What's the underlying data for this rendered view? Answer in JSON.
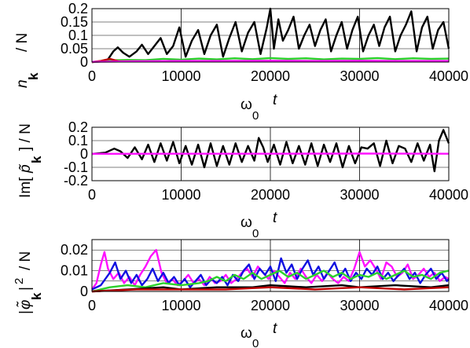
{
  "colors": {
    "black": "#000000",
    "red": "#c00000",
    "green": "#2bd12b",
    "blue": "#1010e0",
    "magenta": "#ff10ff",
    "grid": "#000000"
  },
  "chart_data": [
    {
      "type": "line",
      "xlim": [
        0,
        40000
      ],
      "ylim": [
        0,
        0.2
      ],
      "grid": true,
      "xticks": [
        0,
        10000,
        20000,
        30000,
        40000
      ],
      "xtick_labels": [
        "0",
        "10000",
        "20000",
        "30000",
        "40000"
      ],
      "yticks": [
        0,
        0.05,
        0.1,
        0.15,
        0.2
      ],
      "ytick_labels": [
        "0",
        "0.05",
        "0.1",
        "0.15",
        "0.2"
      ],
      "xlabel": {
        "base": "ω",
        "sub": "0",
        "var": "t"
      },
      "ylabel": {
        "base": "n",
        "sub": "k",
        "rest": "/ N"
      },
      "series": [
        {
          "color_key": "black",
          "x": [
            0,
            1000,
            1800,
            2400,
            2900,
            3500,
            4200,
            5000,
            5600,
            6300,
            7000,
            7700,
            8400,
            9100,
            9800,
            10500,
            11200,
            11900,
            12600,
            13300,
            14000,
            14700,
            15400,
            16100,
            16800,
            17500,
            18200,
            18900,
            19600,
            20000,
            20400,
            20900,
            21400,
            22000,
            22600,
            23200,
            23800,
            24400,
            25000,
            25600,
            26200,
            26800,
            27400,
            28000,
            28600,
            29200,
            29800,
            30400,
            31000,
            31600,
            32200,
            32800,
            33400,
            34000,
            34600,
            35200,
            35800,
            36400,
            37000,
            37600,
            38200,
            38800,
            39400,
            40000
          ],
          "y": [
            0,
            0.002,
            0.01,
            0.04,
            0.055,
            0.035,
            0.02,
            0.04,
            0.065,
            0.03,
            0.06,
            0.09,
            0.03,
            0.06,
            0.13,
            0.02,
            0.08,
            0.12,
            0.03,
            0.1,
            0.14,
            0.02,
            0.09,
            0.15,
            0.04,
            0.11,
            0.15,
            0.03,
            0.13,
            0.2,
            0.05,
            0.16,
            0.08,
            0.12,
            0.17,
            0.05,
            0.1,
            0.14,
            0.06,
            0.12,
            0.16,
            0.04,
            0.1,
            0.15,
            0.05,
            0.12,
            0.17,
            0.04,
            0.1,
            0.14,
            0.06,
            0.13,
            0.17,
            0.04,
            0.1,
            0.14,
            0.19,
            0.04,
            0.13,
            0.17,
            0.05,
            0.12,
            0.15,
            0.05
          ]
        },
        {
          "color_key": "green",
          "x": [
            0,
            2000,
            4000,
            6000,
            8000,
            10000,
            12000,
            14000,
            16000,
            18000,
            20000,
            22000,
            24000,
            26000,
            28000,
            30000,
            32000,
            34000,
            36000,
            38000,
            40000
          ],
          "y": [
            0,
            0.006,
            0.008,
            0.007,
            0.012,
            0.009,
            0.013,
            0.01,
            0.014,
            0.011,
            0.015,
            0.012,
            0.014,
            0.01,
            0.013,
            0.012,
            0.015,
            0.011,
            0.014,
            0.012,
            0.013
          ]
        },
        {
          "color_key": "red",
          "x": [
            0,
            1000,
            2000,
            3000,
            10000,
            20000,
            30000,
            40000
          ],
          "y": [
            0,
            0.004,
            0.012,
            0.003,
            0.002,
            0.002,
            0.002,
            0.002
          ]
        },
        {
          "color_key": "magenta",
          "x": [
            0,
            5000,
            10000,
            15000,
            20000,
            25000,
            30000,
            35000,
            40000
          ],
          "y": [
            0.001,
            0.003,
            0.004,
            0.004,
            0.005,
            0.004,
            0.005,
            0.004,
            0.004
          ]
        }
      ]
    },
    {
      "type": "line",
      "xlim": [
        0,
        40000
      ],
      "ylim": [
        -0.2,
        0.2
      ],
      "grid": true,
      "xticks": [
        0,
        10000,
        20000,
        30000,
        40000
      ],
      "xtick_labels": [
        "0",
        "10000",
        "20000",
        "30000",
        "40000"
      ],
      "yticks": [
        -0.2,
        -0.1,
        0,
        0.1,
        0.2
      ],
      "ytick_labels": [
        "-0.2",
        "-0.1",
        "0",
        "0.1",
        "0.2"
      ],
      "xlabel": {
        "base": "ω",
        "sub": "0",
        "var": "t"
      },
      "ylabel": {
        "pre": "Im[",
        "sym": "p̃",
        "sub": "k",
        "rest": "] / N"
      },
      "series": [
        {
          "color_key": "black",
          "x": [
            0,
            1500,
            2500,
            3200,
            4000,
            4800,
            5600,
            6300,
            7000,
            7700,
            8400,
            9100,
            9800,
            10500,
            11200,
            11900,
            12600,
            13300,
            14000,
            14700,
            15400,
            16100,
            16800,
            17500,
            18200,
            18700,
            19200,
            19700,
            20400,
            21100,
            21800,
            22500,
            23200,
            23900,
            24600,
            25300,
            26000,
            26700,
            27400,
            28100,
            28800,
            29500,
            30200,
            30900,
            31600,
            32300,
            33000,
            33700,
            34400,
            35100,
            35800,
            36500,
            37200,
            37900,
            38400,
            38900,
            39400,
            40000
          ],
          "y": [
            0,
            0.01,
            0.04,
            0.02,
            -0.03,
            0.05,
            -0.04,
            0.07,
            -0.06,
            0.08,
            -0.05,
            0.09,
            -0.07,
            0.06,
            -0.08,
            0.07,
            -0.1,
            0.08,
            -0.09,
            0.06,
            -0.08,
            0.08,
            -0.06,
            0.06,
            -0.05,
            0.12,
            0.05,
            -0.06,
            0.07,
            -0.08,
            0.09,
            -0.07,
            0.06,
            -0.08,
            0.08,
            -0.09,
            0.07,
            -0.06,
            0.08,
            -0.1,
            0.06,
            -0.07,
            0.05,
            0.04,
            0.08,
            -0.09,
            0.1,
            -0.07,
            0.06,
            0.04,
            -0.06,
            0.08,
            -0.05,
            0.07,
            -0.13,
            0.1,
            0.18,
            0.08
          ]
        },
        {
          "color_key": "magenta",
          "x": [
            0,
            10000,
            20000,
            30000,
            40000
          ],
          "y": [
            0.001,
            0.002,
            0.002,
            0.003,
            0.002
          ]
        }
      ]
    },
    {
      "type": "line",
      "xlim": [
        0,
        40000
      ],
      "ylim": [
        0,
        0.025
      ],
      "grid": true,
      "xticks": [
        0,
        10000,
        20000,
        30000,
        40000
      ],
      "xtick_labels": [
        "0",
        "10000",
        "20000",
        "30000",
        "40000"
      ],
      "yticks": [
        0,
        0.005,
        0.01,
        0.015,
        0.02,
        0.025
      ],
      "ytick_labels": [
        "0",
        "",
        "0.01",
        "",
        "0.02",
        ""
      ],
      "xlabel": {
        "base": "ω",
        "sub": "0",
        "var": "t"
      },
      "ylabel": {
        "pre": "|",
        "sym": "φ̃",
        "sub": "k",
        "rest": "|",
        "sup": "2",
        "tail": "/ N"
      },
      "series": [
        {
          "color_key": "magenta",
          "x": [
            0,
            500,
            1000,
            1400,
            1800,
            2400,
            3000,
            3600,
            4200,
            4800,
            5400,
            6000,
            6600,
            7200,
            7800,
            8400,
            9000,
            9600,
            10200,
            10800,
            11400,
            12000,
            12600,
            13200,
            13800,
            14400,
            15000,
            15600,
            16200,
            16800,
            17400,
            18000,
            18600,
            19200,
            19800,
            20400,
            21000,
            21600,
            22200,
            22800,
            23400,
            24000,
            24600,
            25200,
            25800,
            26400,
            27000,
            27600,
            28200,
            28800,
            29400,
            30000,
            30600,
            31200,
            31800,
            32400,
            33000,
            33600,
            34200,
            34800,
            35400,
            36000,
            36600,
            37200,
            37800,
            38400,
            39000,
            39600,
            40000
          ],
          "y": [
            0.001,
            0.004,
            0.013,
            0.019,
            0.011,
            0.006,
            0.009,
            0.004,
            0.007,
            0.003,
            0.008,
            0.012,
            0.017,
            0.02,
            0.009,
            0.004,
            0.006,
            0.003,
            0.005,
            0.008,
            0.004,
            0.006,
            0.003,
            0.007,
            0.004,
            0.005,
            0.008,
            0.004,
            0.006,
            0.009,
            0.011,
            0.007,
            0.012,
            0.009,
            0.006,
            0.01,
            0.007,
            0.004,
            0.009,
            0.006,
            0.011,
            0.007,
            0.004,
            0.008,
            0.005,
            0.009,
            0.006,
            0.004,
            0.007,
            0.005,
            0.011,
            0.019,
            0.012,
            0.015,
            0.011,
            0.006,
            0.014,
            0.012,
            0.007,
            0.009,
            0.013,
            0.006,
            0.008,
            0.011,
            0.007,
            0.009,
            0.005,
            0.007,
            0.006
          ]
        },
        {
          "color_key": "blue",
          "x": [
            0,
            1000,
            2000,
            2600,
            3200,
            3800,
            4400,
            5000,
            5600,
            6200,
            6800,
            7400,
            8000,
            8600,
            9200,
            9800,
            10400,
            11000,
            11600,
            12200,
            12800,
            13400,
            14000,
            14600,
            15200,
            15800,
            16400,
            17000,
            17600,
            18200,
            18800,
            19400,
            20000,
            20600,
            21200,
            21800,
            22400,
            23000,
            23600,
            24200,
            24800,
            25400,
            26000,
            26600,
            27200,
            27800,
            28400,
            29000,
            29600,
            30200,
            30800,
            31400,
            32000,
            32600,
            33200,
            33800,
            34400,
            35000,
            35600,
            36200,
            36800,
            37400,
            38000,
            38600,
            39200,
            39800,
            40000
          ],
          "y": [
            0.001,
            0.003,
            0.009,
            0.014,
            0.006,
            0.01,
            0.004,
            0.008,
            0.003,
            0.006,
            0.011,
            0.005,
            0.009,
            0.004,
            0.007,
            0.003,
            0.006,
            0.002,
            0.005,
            0.008,
            0.003,
            0.006,
            0.004,
            0.007,
            0.003,
            0.008,
            0.005,
            0.01,
            0.013,
            0.006,
            0.011,
            0.008,
            0.012,
            0.005,
            0.016,
            0.009,
            0.013,
            0.006,
            0.011,
            0.015,
            0.008,
            0.012,
            0.006,
            0.01,
            0.014,
            0.007,
            0.011,
            0.005,
            0.009,
            0.006,
            0.011,
            0.008,
            0.012,
            0.006,
            0.009,
            0.005,
            0.008,
            0.011,
            0.006,
            0.009,
            0.004,
            0.008,
            0.011,
            0.006,
            0.009,
            0.005,
            0.006
          ]
        },
        {
          "color_key": "green",
          "x": [
            0,
            2000,
            4000,
            6000,
            8000,
            10000,
            12000,
            13000,
            14000,
            15000,
            16000,
            17000,
            18000,
            19000,
            20000,
            21000,
            22000,
            23000,
            24000,
            25000,
            26000,
            27000,
            28000,
            29000,
            30000,
            31000,
            32000,
            33000,
            34000,
            35000,
            36000,
            37000,
            38000,
            39000,
            40000
          ],
          "y": [
            0,
            0.002,
            0.003,
            0.002,
            0.004,
            0.003,
            0.004,
            0.005,
            0.007,
            0.005,
            0.008,
            0.006,
            0.009,
            0.006,
            0.008,
            0.01,
            0.007,
            0.009,
            0.006,
            0.008,
            0.01,
            0.007,
            0.009,
            0.006,
            0.008,
            0.007,
            0.009,
            0.006,
            0.008,
            0.01,
            0.007,
            0.008,
            0.006,
            0.009,
            0.01
          ]
        },
        {
          "color_key": "black",
          "x": [
            0,
            4000,
            8000,
            10000,
            14000,
            18000,
            20000,
            24000,
            28000,
            30000,
            34000,
            38000,
            40000
          ],
          "y": [
            0,
            0.001,
            0.002,
            0.001,
            0.002,
            0.002,
            0.003,
            0.002,
            0.003,
            0.002,
            0.003,
            0.002,
            0.003
          ]
        },
        {
          "color_key": "red",
          "x": [
            0,
            5000,
            10000,
            15000,
            20000,
            25000,
            30000,
            35000,
            40000
          ],
          "y": [
            0,
            0.001,
            0.001,
            0.001,
            0.002,
            0.001,
            0.002,
            0.001,
            0.002
          ]
        }
      ]
    }
  ]
}
